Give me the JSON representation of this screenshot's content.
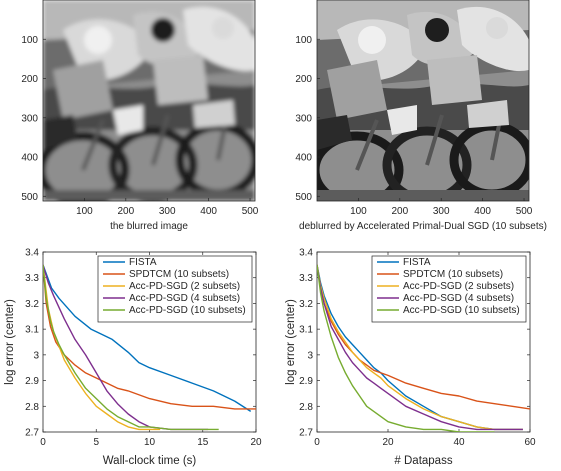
{
  "images": [
    {
      "caption": "the blurred image",
      "xticks": [
        "100",
        "200",
        "300",
        "400",
        "500"
      ],
      "yticks": [
        "100",
        "200",
        "300",
        "400",
        "500"
      ],
      "content": "motocross-riders-photo-blurred"
    },
    {
      "caption": "deblurred by Accelerated Primal-Dual SGD (10 subsets)",
      "xticks": [
        "100",
        "200",
        "300",
        "400",
        "500"
      ],
      "yticks": [
        "100",
        "200",
        "300",
        "400",
        "500"
      ],
      "content": "motocross-riders-photo-deblurred"
    }
  ],
  "chart_data": [
    {
      "type": "line",
      "xlabel": "Wall-clock time (s)",
      "ylabel": "log error (center)",
      "xlim": [
        0,
        20
      ],
      "ylim": [
        2.7,
        3.4
      ],
      "xticks": [
        "0",
        "5",
        "10",
        "15",
        "20"
      ],
      "yticks": [
        "2.7",
        "2.8",
        "2.9",
        "3",
        "3.1",
        "3.2",
        "3.3",
        "3.4"
      ],
      "legend_position": "top-right",
      "series": [
        {
          "name": "FISTA",
          "color": "#0072BD",
          "x": [
            0,
            0.8,
            1.5,
            3,
            4.5,
            5.5,
            6.5,
            8,
            9,
            10,
            12,
            14,
            16,
            18,
            19.5
          ],
          "y": [
            3.35,
            3.26,
            3.22,
            3.15,
            3.1,
            3.08,
            3.06,
            3.01,
            2.97,
            2.95,
            2.92,
            2.89,
            2.86,
            2.82,
            2.78
          ]
        },
        {
          "name": "SPDTCM (10 subsets)",
          "color": "#D95319",
          "x": [
            0,
            0.3,
            0.7,
            1.2,
            2,
            3,
            4,
            5,
            6,
            7,
            8,
            10,
            12,
            14,
            16,
            18,
            20
          ],
          "y": [
            3.35,
            3.2,
            3.11,
            3.05,
            3.0,
            2.96,
            2.93,
            2.91,
            2.89,
            2.87,
            2.86,
            2.83,
            2.81,
            2.8,
            2.8,
            2.79,
            2.79
          ]
        },
        {
          "name": "Acc-PD-SGD (2 subsets)",
          "color": "#EDB120",
          "x": [
            0,
            0.5,
            1,
            2,
            3,
            4,
            5,
            6,
            7,
            8,
            9,
            10,
            11
          ],
          "y": [
            3.35,
            3.18,
            3.09,
            2.98,
            2.91,
            2.85,
            2.8,
            2.77,
            2.74,
            2.72,
            2.71,
            2.71,
            2.71
          ]
        },
        {
          "name": "Acc-PD-SGD (4 subsets)",
          "color": "#7E2F8E",
          "x": [
            0,
            0.5,
            1,
            2,
            3,
            4,
            5,
            6,
            7,
            8,
            9,
            10,
            12,
            14,
            15.5
          ],
          "y": [
            3.35,
            3.28,
            3.23,
            3.14,
            3.06,
            3.0,
            2.93,
            2.86,
            2.81,
            2.77,
            2.74,
            2.72,
            2.71,
            2.71,
            2.71
          ]
        },
        {
          "name": "Acc-PD-SGD (10 subsets)",
          "color": "#77AC30",
          "x": [
            0,
            0.3,
            0.7,
            1,
            1.5,
            2,
            3,
            4,
            5,
            6,
            7,
            8,
            9,
            10,
            12,
            14,
            15,
            16.5
          ],
          "y": [
            3.35,
            3.22,
            3.13,
            3.09,
            3.04,
            3.0,
            2.93,
            2.87,
            2.83,
            2.79,
            2.76,
            2.74,
            2.72,
            2.72,
            2.71,
            2.71,
            2.71,
            2.71
          ]
        }
      ]
    },
    {
      "type": "line",
      "xlabel": "# Datapass",
      "ylabel": "log error (center)",
      "xlim": [
        0,
        60
      ],
      "ylim": [
        2.7,
        3.4
      ],
      "xticks": [
        "0",
        "20",
        "40",
        "60"
      ],
      "yticks": [
        "2.7",
        "2.8",
        "2.9",
        "3",
        "3.1",
        "3.2",
        "3.3",
        "3.4"
      ],
      "legend_position": "top-right",
      "series": [
        {
          "name": "FISTA",
          "color": "#0072BD",
          "x": [
            0,
            1,
            2,
            4,
            6,
            8,
            10,
            12,
            14,
            16,
            18,
            20,
            25,
            30,
            35,
            40,
            45,
            50,
            55,
            58
          ],
          "y": [
            3.35,
            3.28,
            3.23,
            3.16,
            3.11,
            3.07,
            3.04,
            3.01,
            2.98,
            2.95,
            2.93,
            2.9,
            2.84,
            2.8,
            2.76,
            2.74,
            2.72,
            2.71,
            2.71,
            2.71
          ]
        },
        {
          "name": "SPDTCM (10 subsets)",
          "color": "#D95319",
          "x": [
            0,
            1,
            2,
            4,
            6,
            8,
            10,
            12,
            14,
            16,
            18,
            20,
            25,
            30,
            35,
            40,
            45,
            50,
            55,
            60
          ],
          "y": [
            3.35,
            3.26,
            3.2,
            3.13,
            3.08,
            3.04,
            3.01,
            2.98,
            2.96,
            2.94,
            2.93,
            2.92,
            2.89,
            2.87,
            2.85,
            2.84,
            2.82,
            2.81,
            2.8,
            2.79
          ]
        },
        {
          "name": "Acc-PD-SGD (2 subsets)",
          "color": "#EDB120",
          "x": [
            0,
            1,
            2,
            4,
            6,
            8,
            10,
            12,
            14,
            16,
            18,
            20,
            25,
            30,
            35,
            40,
            45,
            50,
            55,
            58
          ],
          "y": [
            3.35,
            3.27,
            3.22,
            3.14,
            3.09,
            3.05,
            3.01,
            2.98,
            2.95,
            2.93,
            2.91,
            2.88,
            2.83,
            2.79,
            2.76,
            2.74,
            2.72,
            2.71,
            2.71,
            2.71
          ]
        },
        {
          "name": "Acc-PD-SGD (4 subsets)",
          "color": "#7E2F8E",
          "x": [
            0,
            1,
            2,
            4,
            6,
            8,
            10,
            12,
            14,
            16,
            18,
            20,
            25,
            30,
            35,
            40,
            45,
            50,
            55,
            58
          ],
          "y": [
            3.35,
            3.26,
            3.2,
            3.11,
            3.06,
            3.01,
            2.97,
            2.94,
            2.91,
            2.89,
            2.87,
            2.85,
            2.8,
            2.77,
            2.74,
            2.72,
            2.71,
            2.71,
            2.71,
            2.71
          ]
        },
        {
          "name": "Acc-PD-SGD (10 subsets)",
          "color": "#77AC30",
          "x": [
            0,
            1,
            2,
            4,
            6,
            8,
            10,
            12,
            14,
            16,
            18,
            20,
            25,
            30,
            35,
            40,
            45,
            50
          ],
          "y": [
            3.35,
            3.24,
            3.17,
            3.07,
            2.99,
            2.93,
            2.88,
            2.84,
            2.8,
            2.78,
            2.76,
            2.74,
            2.72,
            2.71,
            2.71,
            2.7,
            2.7,
            2.7
          ]
        }
      ]
    }
  ]
}
